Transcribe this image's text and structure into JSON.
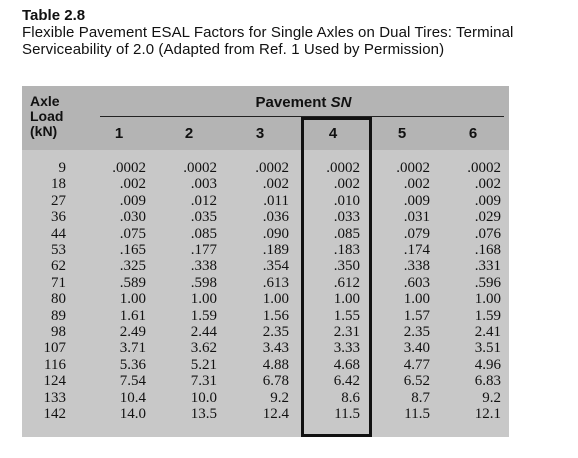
{
  "caption": {
    "table_number": "Table 2.8",
    "title": "Flexible Pavement ESAL Factors for Single Axles on Dual Tires: Terminal Serviceability of 2.0 (Adapted from Ref. 1 Used by Permission)"
  },
  "header": {
    "axle_line1": "Axle",
    "axle_line2": "Load",
    "axle_line3": "(kN)",
    "pavement_prefix": "Pavement ",
    "pavement_sn": "SN",
    "columns": [
      "1",
      "2",
      "3",
      "4",
      "5",
      "6"
    ],
    "highlighted_column": "4"
  },
  "rows": [
    {
      "load": "9",
      "values": [
        ".0002",
        ".0002",
        ".0002",
        ".0002",
        ".0002",
        ".0002"
      ]
    },
    {
      "load": "18",
      "values": [
        ".002",
        ".003",
        ".002",
        ".002",
        ".002",
        ".002"
      ]
    },
    {
      "load": "27",
      "values": [
        ".009",
        ".012",
        ".011",
        ".010",
        ".009",
        ".009"
      ]
    },
    {
      "load": "36",
      "values": [
        ".030",
        ".035",
        ".036",
        ".033",
        ".031",
        ".029"
      ]
    },
    {
      "load": "44",
      "values": [
        ".075",
        ".085",
        ".090",
        ".085",
        ".079",
        ".076"
      ]
    },
    {
      "load": "53",
      "values": [
        ".165",
        ".177",
        ".189",
        ".183",
        ".174",
        ".168"
      ]
    },
    {
      "load": "62",
      "values": [
        ".325",
        ".338",
        ".354",
        ".350",
        ".338",
        ".331"
      ]
    },
    {
      "load": "71",
      "values": [
        ".589",
        ".598",
        ".613",
        ".612",
        ".603",
        ".596"
      ]
    },
    {
      "load": "80",
      "values": [
        "1.00",
        "1.00",
        "1.00",
        "1.00",
        "1.00",
        "1.00"
      ]
    },
    {
      "load": "89",
      "values": [
        "1.61",
        "1.59",
        "1.56",
        "1.55",
        "1.57",
        "1.59"
      ]
    },
    {
      "load": "98",
      "values": [
        "2.49",
        "2.44",
        "2.35",
        "2.31",
        "2.35",
        "2.41"
      ]
    },
    {
      "load": "107",
      "values": [
        "3.71",
        "3.62",
        "3.43",
        "3.33",
        "3.40",
        "3.51"
      ]
    },
    {
      "load": "116",
      "values": [
        "5.36",
        "5.21",
        "4.88",
        "4.68",
        "4.77",
        "4.96"
      ]
    },
    {
      "load": "124",
      "values": [
        "7.54",
        "7.31",
        "6.78",
        "6.42",
        "6.52",
        "6.83"
      ]
    },
    {
      "load": "133",
      "values": [
        "10.4",
        "10.0",
        "9.2",
        "8.6",
        "8.7",
        "9.2"
      ]
    },
    {
      "load": "142",
      "values": [
        "14.0",
        "13.5",
        "12.4",
        "11.5",
        "11.5",
        "12.1"
      ]
    }
  ]
}
